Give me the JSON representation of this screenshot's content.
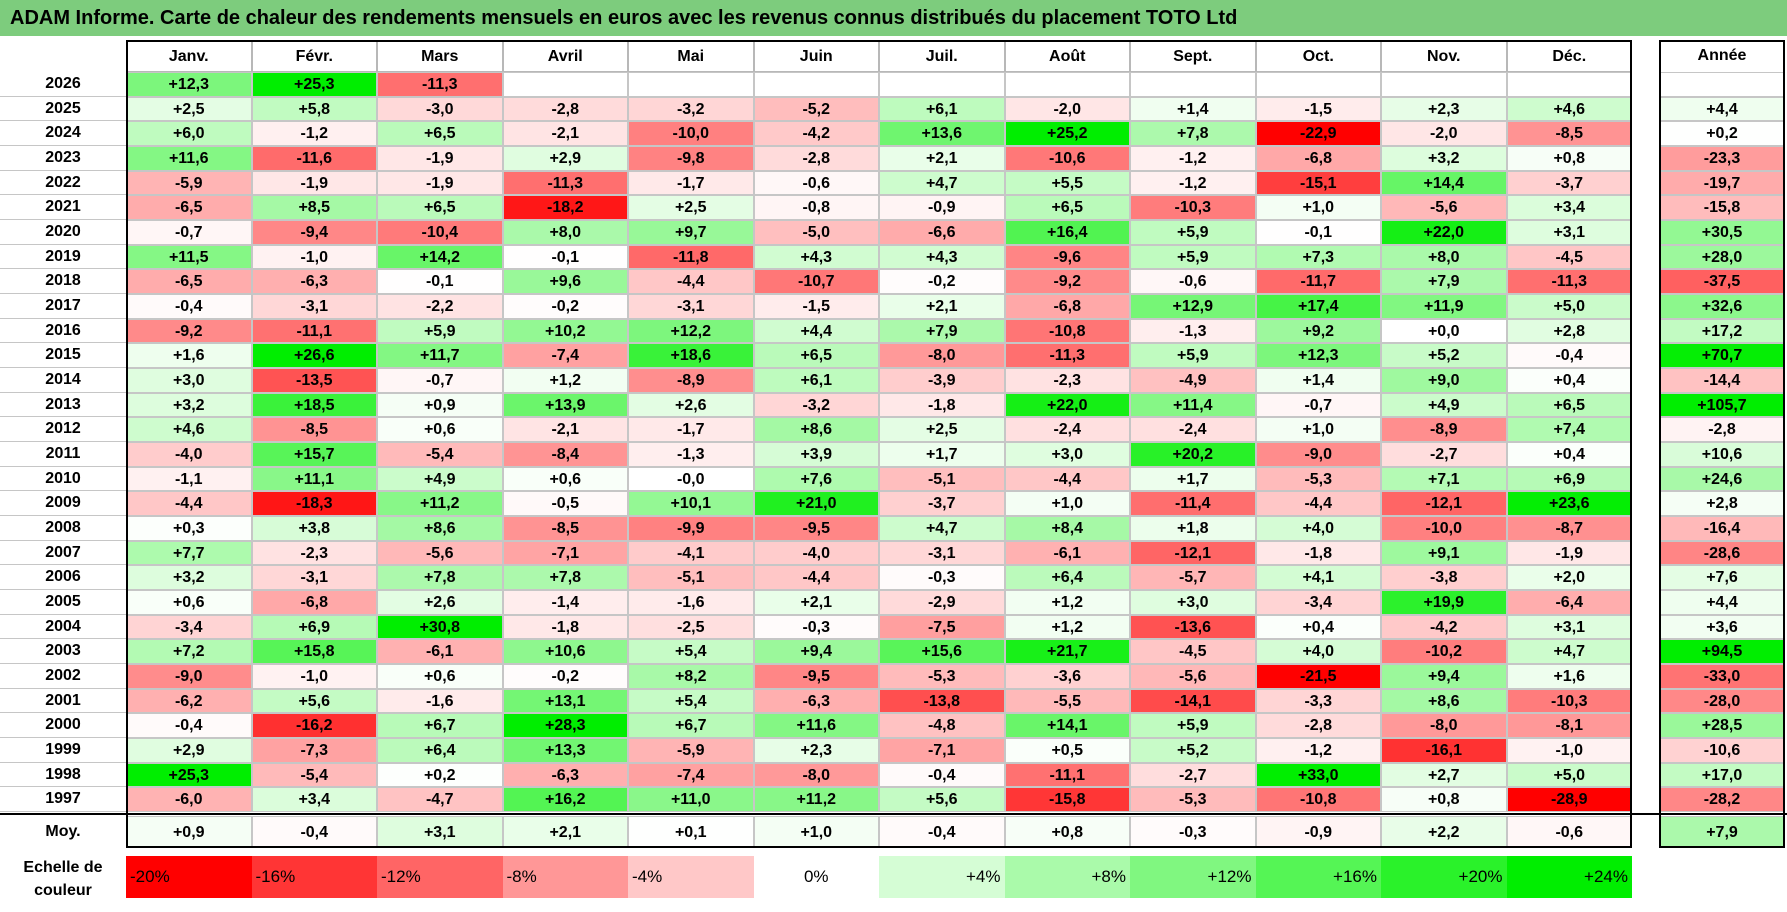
{
  "title": "ADAM Informe. Carte de chaleur des rendements mensuels en euros avec les revenus connus distribués du placement TOTO Ltd",
  "chart_data": {
    "type": "heatmap",
    "title": "ADAM Informe. Carte de chaleur des rendements mensuels en euros avec les revenus connus distribués du placement TOTO Ltd",
    "months": [
      "Janv.",
      "Févr.",
      "Mars",
      "Avril",
      "Mai",
      "Juin",
      "Juil.",
      "Août",
      "Sept.",
      "Oct.",
      "Nov.",
      "Déc."
    ],
    "annual_header": "Année",
    "average_label": "Moy.",
    "rows": [
      {
        "year": "2026",
        "values": [
          "+12,3",
          "+25,3",
          "-11,3",
          "",
          "",
          "",
          "",
          "",
          "",
          "",
          "",
          ""
        ],
        "annual": ""
      },
      {
        "year": "2025",
        "values": [
          "+2,5",
          "+5,8",
          "-3,0",
          "-2,8",
          "-3,2",
          "-5,2",
          "+6,1",
          "-2,0",
          "+1,4",
          "-1,5",
          "+2,3",
          "+4,6"
        ],
        "annual": "+4,4"
      },
      {
        "year": "2024",
        "values": [
          "+6,0",
          "-1,2",
          "+6,5",
          "-2,1",
          "-10,0",
          "-4,2",
          "+13,6",
          "+25,2",
          "+7,8",
          "-22,9",
          "-2,0",
          "-8,5"
        ],
        "annual": "+0,2"
      },
      {
        "year": "2023",
        "values": [
          "+11,6",
          "-11,6",
          "-1,9",
          "+2,9",
          "-9,8",
          "-2,8",
          "+2,1",
          "-10,6",
          "-1,2",
          "-6,8",
          "+3,2",
          "+0,8"
        ],
        "annual": "-23,3"
      },
      {
        "year": "2022",
        "values": [
          "-5,9",
          "-1,9",
          "-1,9",
          "-11,3",
          "-1,7",
          "-0,6",
          "+4,7",
          "+5,5",
          "-1,2",
          "-15,1",
          "+14,4",
          "-3,7"
        ],
        "annual": "-19,7"
      },
      {
        "year": "2021",
        "values": [
          "-6,5",
          "+8,5",
          "+6,5",
          "-18,2",
          "+2,5",
          "-0,8",
          "-0,9",
          "+6,5",
          "-10,3",
          "+1,0",
          "-5,6",
          "+3,4"
        ],
        "annual": "-15,8"
      },
      {
        "year": "2020",
        "values": [
          "-0,7",
          "-9,4",
          "-10,4",
          "+8,0",
          "+9,7",
          "-5,0",
          "-6,6",
          "+16,4",
          "+5,9",
          "-0,1",
          "+22,0",
          "+3,1"
        ],
        "annual": "+30,5"
      },
      {
        "year": "2019",
        "values": [
          "+11,5",
          "-1,0",
          "+14,2",
          "-0,1",
          "-11,8",
          "+4,3",
          "+4,3",
          "-9,6",
          "+5,9",
          "+7,3",
          "+8,0",
          "-4,5"
        ],
        "annual": "+28,0"
      },
      {
        "year": "2018",
        "values": [
          "-6,5",
          "-6,3",
          "-0,1",
          "+9,6",
          "-4,4",
          "-10,7",
          "-0,2",
          "-9,2",
          "-0,6",
          "-11,7",
          "+7,9",
          "-11,3"
        ],
        "annual": "-37,5"
      },
      {
        "year": "2017",
        "values": [
          "-0,4",
          "-3,1",
          "-2,2",
          "-0,2",
          "-3,1",
          "-1,5",
          "+2,1",
          "-6,8",
          "+12,9",
          "+17,4",
          "+11,9",
          "+5,0"
        ],
        "annual": "+32,6"
      },
      {
        "year": "2016",
        "values": [
          "-9,2",
          "-11,1",
          "+5,9",
          "+10,2",
          "+12,2",
          "+4,4",
          "+7,9",
          "-10,8",
          "-1,3",
          "+9,2",
          "+0,0",
          "+2,8"
        ],
        "annual": "+17,2"
      },
      {
        "year": "2015",
        "values": [
          "+1,6",
          "+26,6",
          "+11,7",
          "-7,4",
          "+18,6",
          "+6,5",
          "-8,0",
          "-11,3",
          "+5,9",
          "+12,3",
          "+5,2",
          "-0,4"
        ],
        "annual": "+70,7"
      },
      {
        "year": "2014",
        "values": [
          "+3,0",
          "-13,5",
          "-0,7",
          "+1,2",
          "-8,9",
          "+6,1",
          "-3,9",
          "-2,3",
          "-4,9",
          "+1,4",
          "+9,0",
          "+0,4"
        ],
        "annual": "-14,4"
      },
      {
        "year": "2013",
        "values": [
          "+3,2",
          "+18,5",
          "+0,9",
          "+13,9",
          "+2,6",
          "-3,2",
          "-1,8",
          "+22,0",
          "+11,4",
          "-0,7",
          "+4,9",
          "+6,5"
        ],
        "annual": "+105,7"
      },
      {
        "year": "2012",
        "values": [
          "+4,6",
          "-8,5",
          "+0,6",
          "-2,1",
          "-1,7",
          "+8,6",
          "+2,5",
          "-2,4",
          "-2,4",
          "+1,0",
          "-8,9",
          "+7,4"
        ],
        "annual": "-2,8"
      },
      {
        "year": "2011",
        "values": [
          "-4,0",
          "+15,7",
          "-5,4",
          "-8,4",
          "-1,3",
          "+3,9",
          "+1,7",
          "+3,0",
          "+20,2",
          "-9,0",
          "-2,7",
          "+0,4"
        ],
        "annual": "+10,6"
      },
      {
        "year": "2010",
        "values": [
          "-1,1",
          "+11,1",
          "+4,9",
          "+0,6",
          "-0,0",
          "+7,6",
          "-5,1",
          "-4,4",
          "+1,7",
          "-5,3",
          "+7,1",
          "+6,9"
        ],
        "annual": "+24,6"
      },
      {
        "year": "2009",
        "values": [
          "-4,4",
          "-18,3",
          "+11,2",
          "-0,5",
          "+10,1",
          "+21,0",
          "-3,7",
          "+1,0",
          "-11,4",
          "-4,4",
          "-12,1",
          "+23,6"
        ],
        "annual": "+2,8"
      },
      {
        "year": "2008",
        "values": [
          "+0,3",
          "+3,8",
          "+8,6",
          "-8,5",
          "-9,9",
          "-9,5",
          "+4,7",
          "+8,4",
          "+1,8",
          "+4,0",
          "-10,0",
          "-8,7"
        ],
        "annual": "-16,4"
      },
      {
        "year": "2007",
        "values": [
          "+7,7",
          "-2,3",
          "-5,6",
          "-7,1",
          "-4,1",
          "-4,0",
          "-3,1",
          "-6,1",
          "-12,1",
          "-1,8",
          "+9,1",
          "-1,9"
        ],
        "annual": "-28,6"
      },
      {
        "year": "2006",
        "values": [
          "+3,2",
          "-3,1",
          "+7,8",
          "+7,8",
          "-5,1",
          "-4,4",
          "-0,3",
          "+6,4",
          "-5,7",
          "+4,1",
          "-3,8",
          "+2,0"
        ],
        "annual": "+7,6"
      },
      {
        "year": "2005",
        "values": [
          "+0,6",
          "-6,8",
          "+2,6",
          "-1,4",
          "-1,6",
          "+2,1",
          "-2,9",
          "+1,2",
          "+3,0",
          "-3,4",
          "+19,9",
          "-6,4"
        ],
        "annual": "+4,4"
      },
      {
        "year": "2004",
        "values": [
          "-3,4",
          "+6,9",
          "+30,8",
          "-1,8",
          "-2,5",
          "-0,3",
          "-7,5",
          "+1,2",
          "-13,6",
          "+0,4",
          "-4,2",
          "+3,1"
        ],
        "annual": "+3,6"
      },
      {
        "year": "2003",
        "values": [
          "+7,2",
          "+15,8",
          "-6,1",
          "+10,6",
          "+5,4",
          "+9,4",
          "+15,6",
          "+21,7",
          "-4,5",
          "+4,0",
          "-10,2",
          "+4,7"
        ],
        "annual": "+94,5"
      },
      {
        "year": "2002",
        "values": [
          "-9,0",
          "-1,0",
          "+0,6",
          "-0,2",
          "+8,2",
          "-9,5",
          "-5,3",
          "-3,6",
          "-5,6",
          "-21,5",
          "+9,4",
          "+1,6"
        ],
        "annual": "-33,0"
      },
      {
        "year": "2001",
        "values": [
          "-6,2",
          "+5,6",
          "-1,6",
          "+13,1",
          "+5,4",
          "-6,3",
          "-13,8",
          "-5,5",
          "-14,1",
          "-3,3",
          "+8,6",
          "-10,3"
        ],
        "annual": "-28,0"
      },
      {
        "year": "2000",
        "values": [
          "-0,4",
          "-16,2",
          "+6,7",
          "+28,3",
          "+6,7",
          "+11,6",
          "-4,8",
          "+14,1",
          "+5,9",
          "-2,8",
          "-8,0",
          "-8,1"
        ],
        "annual": "+28,5"
      },
      {
        "year": "1999",
        "values": [
          "+2,9",
          "-7,3",
          "+6,4",
          "+13,3",
          "-5,9",
          "+2,3",
          "-7,1",
          "+0,5",
          "+5,2",
          "-1,2",
          "-16,1",
          "-1,0"
        ],
        "annual": "-10,6"
      },
      {
        "year": "1998",
        "values": [
          "+25,3",
          "-5,4",
          "+0,2",
          "-6,3",
          "-7,4",
          "-8,0",
          "-0,4",
          "-11,1",
          "-2,7",
          "+33,0",
          "+2,7",
          "+5,0"
        ],
        "annual": "+17,0"
      },
      {
        "year": "1997",
        "values": [
          "-6,0",
          "+3,4",
          "-4,7",
          "+16,2",
          "+11,0",
          "+11,2",
          "+5,6",
          "-15,8",
          "-5,3",
          "-10,8",
          "+0,8",
          "-28,9"
        ],
        "annual": "-28,2"
      }
    ],
    "averages": {
      "values": [
        "+0,9",
        "-0,4",
        "+3,1",
        "+2,1",
        "+0,1",
        "+1,0",
        "-0,4",
        "+0,8",
        "-0,3",
        "-0,9",
        "+2,2",
        "-0,6"
      ],
      "annual": "+7,9"
    },
    "scale": {
      "label": "Echelle de couleur",
      "items": [
        {
          "label": "-20%",
          "value": -20,
          "color": "#ff0000"
        },
        {
          "label": "-16%",
          "value": -16,
          "color": "#ff3535"
        },
        {
          "label": "-12%",
          "value": -12,
          "color": "#ff6565"
        },
        {
          "label": "-8%",
          "value": -8,
          "color": "#ff9797"
        },
        {
          "label": "-4%",
          "value": -4,
          "color": "#ffc8c8"
        },
        {
          "label": "0%",
          "value": 0,
          "color": "#ffffff"
        },
        {
          "label": "+4%",
          "value": 4,
          "color": "#d5fdd5"
        },
        {
          "label": "+8%",
          "value": 8,
          "color": "#aafaaa"
        },
        {
          "label": "+12%",
          "value": 12,
          "color": "#80f780"
        },
        {
          "label": "+16%",
          "value": 16,
          "color": "#55f555"
        },
        {
          "label": "+20%",
          "value": 20,
          "color": "#2af22a"
        },
        {
          "label": "+24%",
          "value": 24,
          "color": "#00ee00"
        }
      ]
    },
    "colors": {
      "title_bg": "#7dcc7d",
      "neg_max": "#ff0000",
      "pos_max": "#00ee00",
      "neutral": "#ffffff"
    }
  }
}
